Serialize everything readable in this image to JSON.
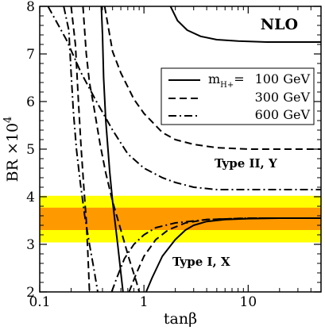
{
  "chart_data": {
    "type": "line",
    "title": "",
    "xlabel": "tanβ",
    "ylabel": "BR ×10^4",
    "ylabel_main": "BR ×10",
    "ylabel_exp": "4",
    "x_scale": "log",
    "xlim": [
      0.1,
      50
    ],
    "ylim": [
      2,
      8
    ],
    "x_ticks": [
      {
        "value": 0.1,
        "label": "0.1"
      },
      {
        "value": 1,
        "label": "1"
      },
      {
        "value": 10,
        "label": "10"
      }
    ],
    "y_ticks": [
      {
        "value": 2,
        "label": "2"
      },
      {
        "value": 3,
        "label": "3"
      },
      {
        "value": 4,
        "label": "4"
      },
      {
        "value": 5,
        "label": "5"
      },
      {
        "value": 6,
        "label": "6"
      },
      {
        "value": 7,
        "label": "7"
      },
      {
        "value": 8,
        "label": "8"
      }
    ],
    "bands": [
      {
        "name": "outer",
        "y0": 3.04,
        "y1": 4.02,
        "color": "#ffff00"
      },
      {
        "name": "inner",
        "y0": 3.3,
        "y1": 3.77,
        "color": "#ff9900"
      }
    ],
    "annotations": {
      "corner": "NLO",
      "type2": "Type II, Y",
      "type1": "Type I, X"
    },
    "legend": {
      "position": "top-right",
      "prefix": "m",
      "prefix_sub": "H+",
      "prefix_eq": "=",
      "entries": [
        {
          "label": "100 GeV",
          "style": "solid"
        },
        {
          "label": "300 GeV",
          "style": "dashed"
        },
        {
          "label": "600 GeV",
          "style": "dashdot"
        }
      ]
    },
    "series": [
      {
        "group": "Type II, Y",
        "mass": "100 GeV",
        "style": "solid",
        "points": [
          [
            0.39,
            8.0
          ],
          [
            0.4,
            7.4
          ],
          [
            0.41,
            6.5
          ],
          [
            0.43,
            5.6
          ],
          [
            0.47,
            4.5
          ],
          [
            0.5,
            3.9
          ],
          [
            0.56,
            3.0
          ],
          [
            0.6,
            2.4
          ],
          [
            0.63,
            2.0
          ]
        ]
      },
      {
        "group": "Type II, Y",
        "mass": "100 GeV",
        "style": "solid",
        "points": [
          [
            1.8,
            8.0
          ],
          [
            2.1,
            7.7
          ],
          [
            2.6,
            7.5
          ],
          [
            3.5,
            7.37
          ],
          [
            5,
            7.3
          ],
          [
            8,
            7.27
          ],
          [
            15,
            7.25
          ],
          [
            30,
            7.25
          ],
          [
            50,
            7.25
          ]
        ]
      },
      {
        "group": "Type II, Y",
        "mass": "300 GeV",
        "style": "dashed",
        "points": [
          [
            0.26,
            8.0
          ],
          [
            0.28,
            7.0
          ],
          [
            0.3,
            6.4
          ],
          [
            0.33,
            5.9
          ],
          [
            0.38,
            5.1
          ],
          [
            0.43,
            4.5
          ],
          [
            0.5,
            3.9
          ],
          [
            0.6,
            3.3
          ],
          [
            0.72,
            2.7
          ],
          [
            0.85,
            2.2
          ],
          [
            0.9,
            2.0
          ]
        ]
      },
      {
        "group": "Type II, Y",
        "mass": "300 GeV",
        "style": "dashed",
        "points": [
          [
            0.42,
            8.0
          ],
          [
            0.5,
            7.05
          ],
          [
            0.6,
            6.6
          ],
          [
            0.8,
            6.05
          ],
          [
            1,
            5.75
          ],
          [
            1.5,
            5.35
          ],
          [
            2,
            5.2
          ],
          [
            3,
            5.1
          ],
          [
            5,
            5.03
          ],
          [
            10,
            5.0
          ],
          [
            20,
            5.0
          ],
          [
            50,
            5.0
          ]
        ]
      },
      {
        "group": "Type II, Y",
        "mass": "600 GeV",
        "style": "dashdot",
        "points": [
          [
            0.17,
            8.0
          ],
          [
            0.19,
            7.5
          ],
          [
            0.2,
            6.6
          ],
          [
            0.21,
            5.8
          ],
          [
            0.225,
            5.0
          ],
          [
            0.245,
            4.3
          ],
          [
            0.27,
            3.6
          ],
          [
            0.3,
            3.0
          ],
          [
            0.33,
            2.5
          ],
          [
            0.36,
            2.0
          ]
        ]
      },
      {
        "group": "Type II, Y",
        "mass": "600 GeV",
        "style": "dashdot",
        "points": [
          [
            0.12,
            8.0
          ],
          [
            0.18,
            7.3
          ],
          [
            0.25,
            6.6
          ],
          [
            0.35,
            6.0
          ],
          [
            0.5,
            5.4
          ],
          [
            0.7,
            4.9
          ],
          [
            1,
            4.6
          ],
          [
            1.5,
            4.4
          ],
          [
            2,
            4.3
          ],
          [
            3,
            4.2
          ],
          [
            5,
            4.15
          ],
          [
            10,
            4.15
          ],
          [
            50,
            4.15
          ]
        ]
      },
      {
        "group": "Type I, X",
        "mass": "100 GeV",
        "style": "solid",
        "points": [
          [
            1.05,
            2.0
          ],
          [
            1.2,
            2.3
          ],
          [
            1.5,
            2.75
          ],
          [
            2,
            3.1
          ],
          [
            2.5,
            3.3
          ],
          [
            3,
            3.4
          ],
          [
            4,
            3.48
          ],
          [
            6,
            3.52
          ],
          [
            10,
            3.54
          ],
          [
            20,
            3.55
          ],
          [
            50,
            3.55
          ]
        ]
      },
      {
        "group": "Type I, X",
        "mass": "300 GeV",
        "style": "dashed",
        "points": [
          [
            0.72,
            2.0
          ],
          [
            0.85,
            2.4
          ],
          [
            1,
            2.75
          ],
          [
            1.3,
            3.1
          ],
          [
            1.7,
            3.3
          ],
          [
            2.5,
            3.45
          ],
          [
            4,
            3.52
          ],
          [
            10,
            3.55
          ],
          [
            50,
            3.55
          ]
        ]
      },
      {
        "group": "Type I, X",
        "mass": "600 GeV",
        "style": "dashdot",
        "points": [
          [
            0.49,
            2.0
          ],
          [
            0.55,
            2.3
          ],
          [
            0.65,
            2.7
          ],
          [
            0.8,
            3.0
          ],
          [
            1,
            3.2
          ],
          [
            1.3,
            3.35
          ],
          [
            2,
            3.45
          ],
          [
            4,
            3.52
          ],
          [
            10,
            3.55
          ],
          [
            50,
            3.55
          ]
        ]
      },
      {
        "group": "Type I, X",
        "mass": "300 GeV",
        "style": "dashed",
        "points": [
          [
            0.2,
            8.0
          ],
          [
            0.22,
            7.2
          ],
          [
            0.235,
            6.0
          ],
          [
            0.25,
            5.0
          ],
          [
            0.265,
            4.2
          ],
          [
            0.28,
            3.5
          ],
          [
            0.29,
            2.8
          ],
          [
            0.3,
            2.0
          ]
        ]
      }
    ]
  }
}
